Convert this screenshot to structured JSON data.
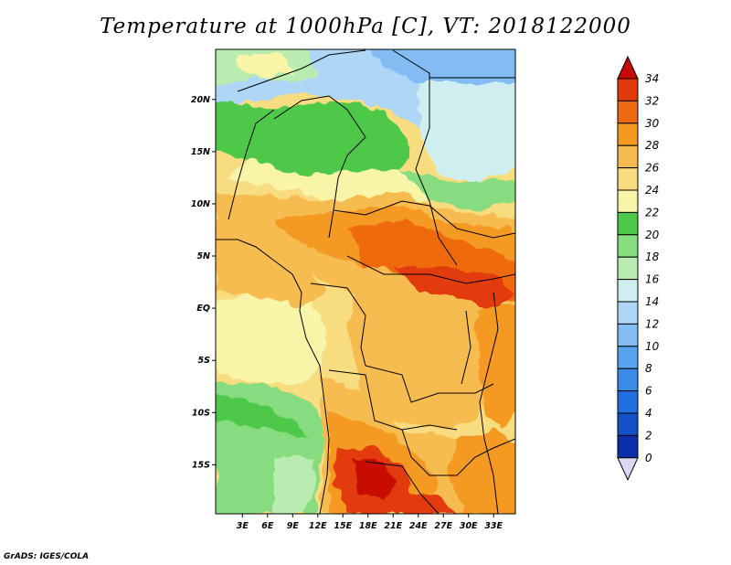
{
  "title": "Temperature at 1000hPa [C], VT: 2018122000",
  "credit": "GrADS: IGES/COLA",
  "map": {
    "lat_ticks": [
      "20N",
      "15N",
      "10N",
      "5N",
      "EQ",
      "5S",
      "10S",
      "15S"
    ],
    "lon_ticks": [
      "3E",
      "6E",
      "9E",
      "12E",
      "15E",
      "18E",
      "21E",
      "24E",
      "27E",
      "30E",
      "33E"
    ],
    "lat_values": [
      20,
      15,
      10,
      5,
      0,
      -5,
      -10,
      -15
    ],
    "lon_values": [
      3,
      6,
      9,
      12,
      15,
      18,
      21,
      24,
      27,
      30,
      33
    ],
    "lat_range": [
      -19.7,
      24.8
    ],
    "lon_range": [
      -0.2,
      35.6
    ],
    "units": "C"
  },
  "colorbar": {
    "labels": [
      "0",
      "2",
      "4",
      "6",
      "8",
      "10",
      "12",
      "14",
      "16",
      "18",
      "20",
      "22",
      "24",
      "26",
      "28",
      "30",
      "32",
      "34"
    ],
    "colors": [
      "#0a0f7a",
      "#0b2fa8",
      "#1450c8",
      "#1f6ee0",
      "#3a8be8",
      "#5aa2ee",
      "#82bcf2",
      "#aed6f6",
      "#cfeef0",
      "#b8ecb0",
      "#88dc80",
      "#4ec84a",
      "#f8f4a8",
      "#f8dc80",
      "#f6bc50",
      "#f49a20",
      "#ee6a10",
      "#e23a08",
      "#c80a04"
    ],
    "under_color": "#dcd8f4",
    "over_color": "#c80a04"
  }
}
